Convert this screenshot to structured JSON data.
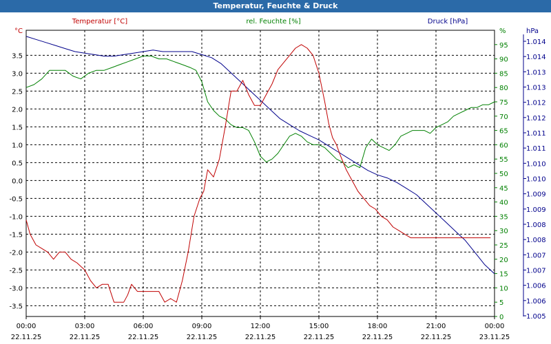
{
  "window": {
    "title": "Temperatur, Feuchte & Druck"
  },
  "chart_data": {
    "type": "line",
    "title": "Temperatur, Feuchte & Druck",
    "x_ticks": [
      {
        "time": "00:00",
        "date": "22.11.25"
      },
      {
        "time": "03:00",
        "date": "22.11.25"
      },
      {
        "time": "06:00",
        "date": "22.11.25"
      },
      {
        "time": "09:00",
        "date": "22.11.25"
      },
      {
        "time": "12:00",
        "date": "22.11.25"
      },
      {
        "time": "15:00",
        "date": "22.11.25"
      },
      {
        "time": "18:00",
        "date": "22.11.25"
      },
      {
        "time": "21:00",
        "date": "22.11.25"
      },
      {
        "time": "00:00",
        "date": "23.11.25"
      }
    ],
    "xlim_hours": [
      0,
      24
    ],
    "axes": {
      "temperature": {
        "label": "Temperatur [°C]",
        "unit": "°C",
        "color": "#c00000",
        "ylim": [
          -3.8,
          4.2
        ],
        "ticks": [
          "-3.5",
          "-3.0",
          "-2.5",
          "-2.0",
          "-1.5",
          "-1.0",
          "-0.5",
          "0.0",
          "0.5",
          "1.0",
          "1.5",
          "2.0",
          "2.5",
          "3.0",
          "3.5"
        ]
      },
      "humidity": {
        "label": "rel. Feuchte [%]",
        "unit": "%",
        "color": "#008000",
        "ylim": [
          0,
          100
        ],
        "ticks": [
          "0",
          "5",
          "10",
          "15",
          "20",
          "25",
          "30",
          "35",
          "40",
          "45",
          "50",
          "55",
          "60",
          "65",
          "70",
          "75",
          "80",
          "85",
          "90",
          "95"
        ]
      },
      "pressure": {
        "label": "Druck [hPa]",
        "unit": "hPa",
        "color": "#00008b",
        "ylim": [
          1004.8,
          1014.2
        ],
        "ticks": [
          "1.005",
          "1.006",
          "1.006",
          "1.007",
          "1.007",
          "1.008",
          "1.008",
          "1.009",
          "1.009",
          "1.010",
          "1.010",
          "1.011",
          "1.011",
          "1.012",
          "1.012",
          "1.013",
          "1.013",
          "1.014",
          "1.014"
        ]
      }
    },
    "series": [
      {
        "name": "Temperatur [°C]",
        "axis": "temperature",
        "x": [
          0,
          0.2,
          0.5,
          0.8,
          1.1,
          1.4,
          1.7,
          2.0,
          2.3,
          2.6,
          3.0,
          3.3,
          3.6,
          3.9,
          4.2,
          4.5,
          4.8,
          5.0,
          5.2,
          5.4,
          5.7,
          6.0,
          6.1,
          6.3,
          6.5,
          6.8,
          7.1,
          7.4,
          7.7,
          8.0,
          8.3,
          8.6,
          8.9,
          9.1,
          9.3,
          9.6,
          9.9,
          10.2,
          10.5,
          10.8,
          11.1,
          11.4,
          11.7,
          12.0,
          12.3,
          12.6,
          12.9,
          13.2,
          13.5,
          13.8,
          14.1,
          14.4,
          14.7,
          15.0,
          15.3,
          15.5,
          15.7,
          15.9,
          16.1,
          16.4,
          16.7,
          17.0,
          17.3,
          17.6,
          17.9,
          18.2,
          18.5,
          18.8,
          19.1,
          19.4,
          19.7,
          20.0,
          20.3,
          20.6,
          20.9,
          21.2,
          21.5,
          21.8,
          22.1,
          22.4,
          22.7,
          23.0,
          23.3,
          23.6,
          23.8
        ],
        "values": [
          -1.1,
          -1.5,
          -1.8,
          -1.9,
          -2.0,
          -2.2,
          -2.0,
          -2.0,
          -2.2,
          -2.3,
          -2.5,
          -2.8,
          -3.0,
          -2.9,
          -2.9,
          -3.4,
          -3.4,
          -3.4,
          -3.2,
          -2.9,
          -3.1,
          -3.1,
          -3.1,
          -3.1,
          -3.1,
          -3.1,
          -3.4,
          -3.3,
          -3.4,
          -2.8,
          -2.0,
          -1.0,
          -0.5,
          -0.3,
          0.3,
          0.1,
          0.6,
          1.5,
          2.5,
          2.5,
          2.8,
          2.4,
          2.1,
          2.1,
          2.4,
          2.7,
          3.1,
          3.3,
          3.5,
          3.7,
          3.8,
          3.7,
          3.5,
          3.0,
          2.2,
          1.6,
          1.2,
          1.0,
          0.7,
          0.3,
          0.0,
          -0.3,
          -0.5,
          -0.7,
          -0.8,
          -1.0,
          -1.1,
          -1.3,
          -1.4,
          -1.5,
          -1.6,
          -1.6,
          -1.6,
          -1.6,
          -1.6,
          -1.6,
          -1.6,
          -1.6,
          -1.6,
          -1.6,
          -1.6,
          -1.6,
          -1.6,
          -1.6,
          -1.6
        ]
      },
      {
        "name": "rel. Feuchte [%]",
        "axis": "humidity",
        "x": [
          0,
          0.4,
          0.8,
          1.2,
          1.6,
          2.0,
          2.4,
          2.8,
          3.2,
          3.6,
          4.0,
          4.4,
          4.8,
          5.2,
          5.6,
          6.0,
          6.4,
          6.8,
          7.2,
          7.6,
          8.0,
          8.4,
          8.7,
          9.0,
          9.3,
          9.6,
          9.9,
          10.2,
          10.5,
          10.8,
          11.1,
          11.4,
          11.7,
          12.0,
          12.3,
          12.6,
          12.9,
          13.2,
          13.5,
          13.8,
          14.1,
          14.4,
          14.7,
          15.0,
          15.3,
          15.6,
          15.9,
          16.2,
          16.5,
          16.8,
          17.1,
          17.4,
          17.7,
          18.0,
          18.3,
          18.6,
          18.9,
          19.2,
          19.5,
          19.8,
          20.1,
          20.4,
          20.7,
          21.0,
          21.3,
          21.6,
          21.9,
          22.2,
          22.5,
          22.8,
          23.1,
          23.4,
          23.7,
          24.0
        ],
        "values": [
          80,
          81,
          83,
          86,
          86,
          86,
          84,
          83,
          85,
          86,
          86,
          87,
          88,
          89,
          90,
          91,
          91,
          90,
          90,
          89,
          88,
          87,
          86,
          82,
          75,
          72,
          70,
          69,
          67,
          66,
          66,
          65,
          61,
          56,
          54,
          55,
          57,
          60,
          63,
          64,
          63,
          61,
          60,
          60,
          59,
          57,
          55,
          54,
          52,
          53,
          52,
          59,
          62,
          60,
          59,
          58,
          60,
          63,
          64,
          65,
          65,
          65,
          64,
          66,
          67,
          68,
          70,
          71,
          72,
          73,
          73,
          74,
          74,
          75
        ]
      },
      {
        "name": "Druck [hPa]",
        "axis": "pressure",
        "x": [
          0,
          0.5,
          1.0,
          1.5,
          2.0,
          2.5,
          3.0,
          3.5,
          4.0,
          4.5,
          5.0,
          5.5,
          6.0,
          6.5,
          7.0,
          7.5,
          8.0,
          8.5,
          9.0,
          9.5,
          10.0,
          10.5,
          11.0,
          11.5,
          12.0,
          12.5,
          13.0,
          13.5,
          14.0,
          14.5,
          15.0,
          15.5,
          16.0,
          16.5,
          17.0,
          17.5,
          18.0,
          18.5,
          19.0,
          19.5,
          20.0,
          20.5,
          21.0,
          21.5,
          22.0,
          22.5,
          23.0,
          23.5,
          24.0
        ],
        "values": [
          1014.0,
          1013.9,
          1013.8,
          1013.7,
          1013.6,
          1013.5,
          1013.45,
          1013.4,
          1013.35,
          1013.35,
          1013.4,
          1013.45,
          1013.5,
          1013.55,
          1013.5,
          1013.5,
          1013.5,
          1013.5,
          1013.4,
          1013.3,
          1013.1,
          1012.8,
          1012.5,
          1012.2,
          1011.9,
          1011.6,
          1011.3,
          1011.1,
          1010.9,
          1010.75,
          1010.6,
          1010.4,
          1010.2,
          1010.0,
          1009.8,
          1009.6,
          1009.45,
          1009.35,
          1009.2,
          1009.0,
          1008.8,
          1008.5,
          1008.2,
          1007.9,
          1007.6,
          1007.3,
          1006.9,
          1006.5,
          1006.2
        ]
      }
    ]
  }
}
